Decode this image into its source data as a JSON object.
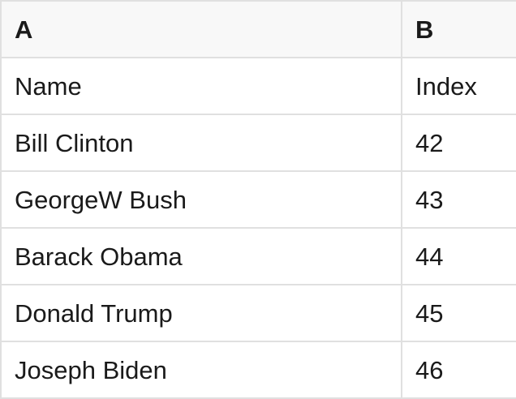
{
  "colors": {
    "border": "#e0e0e0",
    "header_bg": "#f8f8f8",
    "row_bg": "#ffffff",
    "text": "#1a1a1a"
  },
  "table": {
    "column_headers": [
      {
        "label": "A"
      },
      {
        "label": "B"
      }
    ],
    "rows": [
      {
        "a": "Name",
        "b": "Index"
      },
      {
        "a": "Bill Clinton",
        "b": "42"
      },
      {
        "a": "GeorgeW Bush",
        "b": "43"
      },
      {
        "a": "Barack Obama",
        "b": "44"
      },
      {
        "a": "Donald Trump",
        "b": "45"
      },
      {
        "a": "Joseph Biden",
        "b": "46"
      }
    ]
  }
}
